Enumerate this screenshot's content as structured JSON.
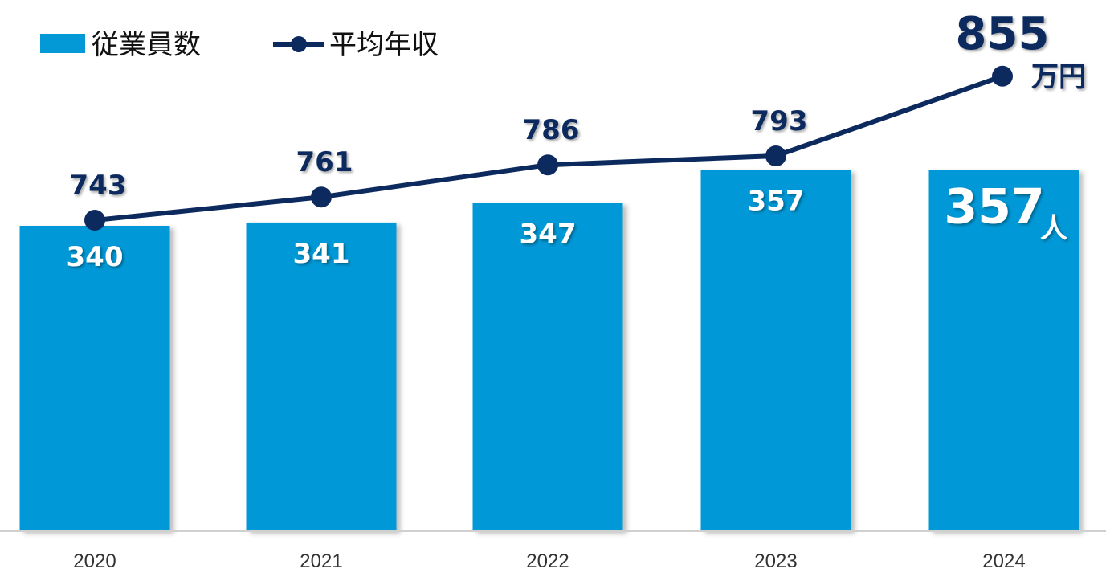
{
  "legend": {
    "bar_label": "従業員数",
    "line_label": "平均年収"
  },
  "colors": {
    "bar": "#0398d6",
    "line": "#0d2a5e",
    "axis": "#d0d0d0"
  },
  "units": {
    "bar_unit": "人",
    "line_unit": "万円"
  },
  "chart_data": {
    "type": "bar",
    "categories": [
      "2020",
      "2021",
      "2022",
      "2023",
      "2024"
    ],
    "series": [
      {
        "name": "従業員数",
        "type": "bar",
        "values": [
          340,
          341,
          347,
          357,
          357
        ]
      },
      {
        "name": "平均年収",
        "type": "line",
        "values": [
          743,
          761,
          786,
          793,
          855
        ]
      }
    ],
    "title": "",
    "xlabel": "",
    "ylabel": "",
    "grid": false,
    "legend_position": "top-left",
    "highlight_last": true
  }
}
